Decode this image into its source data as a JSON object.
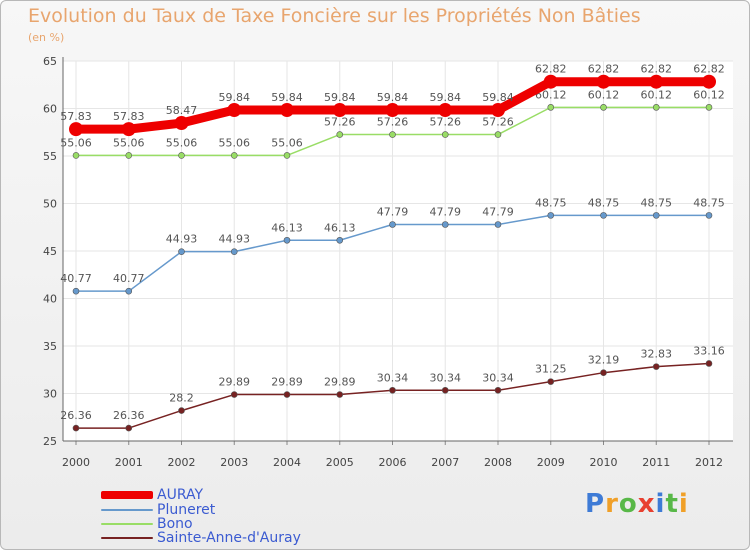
{
  "title": "Evolution du Taux de Taxe Foncière sur les Propriétés Non Bâties",
  "unit_label": "(en %)",
  "logo": {
    "text": "Proxiti",
    "letter_colors": [
      "#3e7bd6",
      "#f0a028",
      "#58b848",
      "#e84030",
      "#3e7bd6",
      "#58b848",
      "#f0a028"
    ]
  },
  "chart_data": {
    "type": "line",
    "categories": [
      "2000",
      "2001",
      "2002",
      "2003",
      "2004",
      "2005",
      "2006",
      "2007",
      "2008",
      "2009",
      "2010",
      "2011",
      "2012"
    ],
    "ylim": [
      25,
      65
    ],
    "yticks": [
      25,
      30,
      35,
      40,
      45,
      50,
      55,
      60,
      65
    ],
    "grid": true,
    "legend_position": "bottom-left",
    "series": [
      {
        "name": "AURAY",
        "color": "#ee0000",
        "values": [
          57.83,
          57.83,
          58.47,
          59.84,
          59.84,
          59.84,
          59.84,
          59.84,
          59.84,
          62.82,
          62.82,
          62.82,
          62.82
        ]
      },
      {
        "name": "Pluneret",
        "color": "#6699cc",
        "values": [
          40.77,
          40.77,
          44.93,
          44.93,
          46.13,
          46.13,
          47.79,
          47.79,
          47.79,
          48.75,
          48.75,
          48.75,
          48.75
        ]
      },
      {
        "name": "Bono",
        "color": "#99dd66",
        "values": [
          55.06,
          55.06,
          55.06,
          55.06,
          55.06,
          57.26,
          57.26,
          57.26,
          57.26,
          60.12,
          60.12,
          60.12,
          60.12
        ]
      },
      {
        "name": "Sainte-Anne-d'Auray",
        "color": "#772222",
        "values": [
          26.36,
          26.36,
          28.2,
          29.89,
          29.89,
          29.89,
          30.34,
          30.34,
          30.34,
          31.25,
          32.19,
          32.83,
          33.16
        ]
      }
    ]
  }
}
